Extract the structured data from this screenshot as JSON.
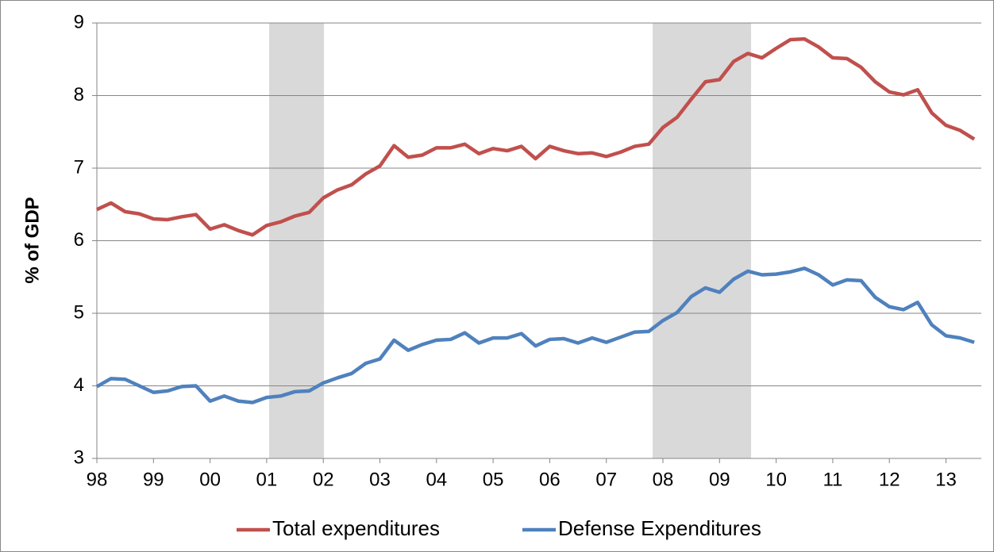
{
  "chart_data": {
    "type": "line",
    "ylabel": "% of GDP",
    "categories": [
      "98",
      null,
      null,
      null,
      "99",
      null,
      null,
      null,
      "00",
      null,
      null,
      null,
      "01",
      null,
      null,
      null,
      "02",
      null,
      null,
      null,
      "03",
      null,
      null,
      null,
      "04",
      null,
      null,
      null,
      "05",
      null,
      null,
      null,
      "06",
      null,
      null,
      null,
      "07",
      null,
      null,
      null,
      "08",
      null,
      null,
      null,
      "09",
      null,
      null,
      null,
      "10",
      null,
      null,
      null,
      "11",
      null,
      null,
      null,
      "12",
      null,
      null,
      null,
      "13",
      null,
      null
    ],
    "series": [
      {
        "name": "Total expenditures",
        "color": "#c0504d",
        "values": [
          6.43,
          6.52,
          6.4,
          6.37,
          6.3,
          6.29,
          6.33,
          6.36,
          6.16,
          6.22,
          6.14,
          6.08,
          6.21,
          6.26,
          6.34,
          6.39,
          6.59,
          6.7,
          6.77,
          6.92,
          7.03,
          7.31,
          7.15,
          7.18,
          7.28,
          7.28,
          7.33,
          7.2,
          7.27,
          7.24,
          7.3,
          7.13,
          7.3,
          7.24,
          7.2,
          7.21,
          7.16,
          7.22,
          7.3,
          7.33,
          7.56,
          7.7,
          7.95,
          8.19,
          8.22,
          8.47,
          8.58,
          8.52,
          8.65,
          8.77,
          8.78,
          8.67,
          8.52,
          8.51,
          8.39,
          8.19,
          8.05,
          8.01,
          8.08,
          7.76,
          7.59,
          7.52,
          7.4
        ]
      },
      {
        "name": "Defense Expenditures",
        "color": "#4f81bd",
        "values": [
          3.99,
          4.1,
          4.09,
          4.0,
          3.91,
          3.93,
          3.99,
          4.0,
          3.79,
          3.86,
          3.79,
          3.77,
          3.84,
          3.86,
          3.92,
          3.93,
          4.04,
          4.11,
          4.17,
          4.31,
          4.37,
          4.63,
          4.49,
          4.57,
          4.63,
          4.64,
          4.73,
          4.59,
          4.66,
          4.66,
          4.72,
          4.55,
          4.64,
          4.65,
          4.59,
          4.66,
          4.6,
          4.67,
          4.74,
          4.75,
          4.9,
          5.01,
          5.23,
          5.35,
          5.29,
          5.47,
          5.58,
          5.53,
          5.54,
          5.57,
          5.62,
          5.53,
          5.39,
          5.46,
          5.45,
          5.22,
          5.09,
          5.05,
          5.15,
          4.84,
          4.69,
          4.66,
          4.6
        ]
      }
    ],
    "ylim": [
      3,
      9
    ],
    "yticks": [
      3,
      4,
      5,
      6,
      7,
      8,
      9
    ],
    "grid": true,
    "legend": "bottom"
  }
}
